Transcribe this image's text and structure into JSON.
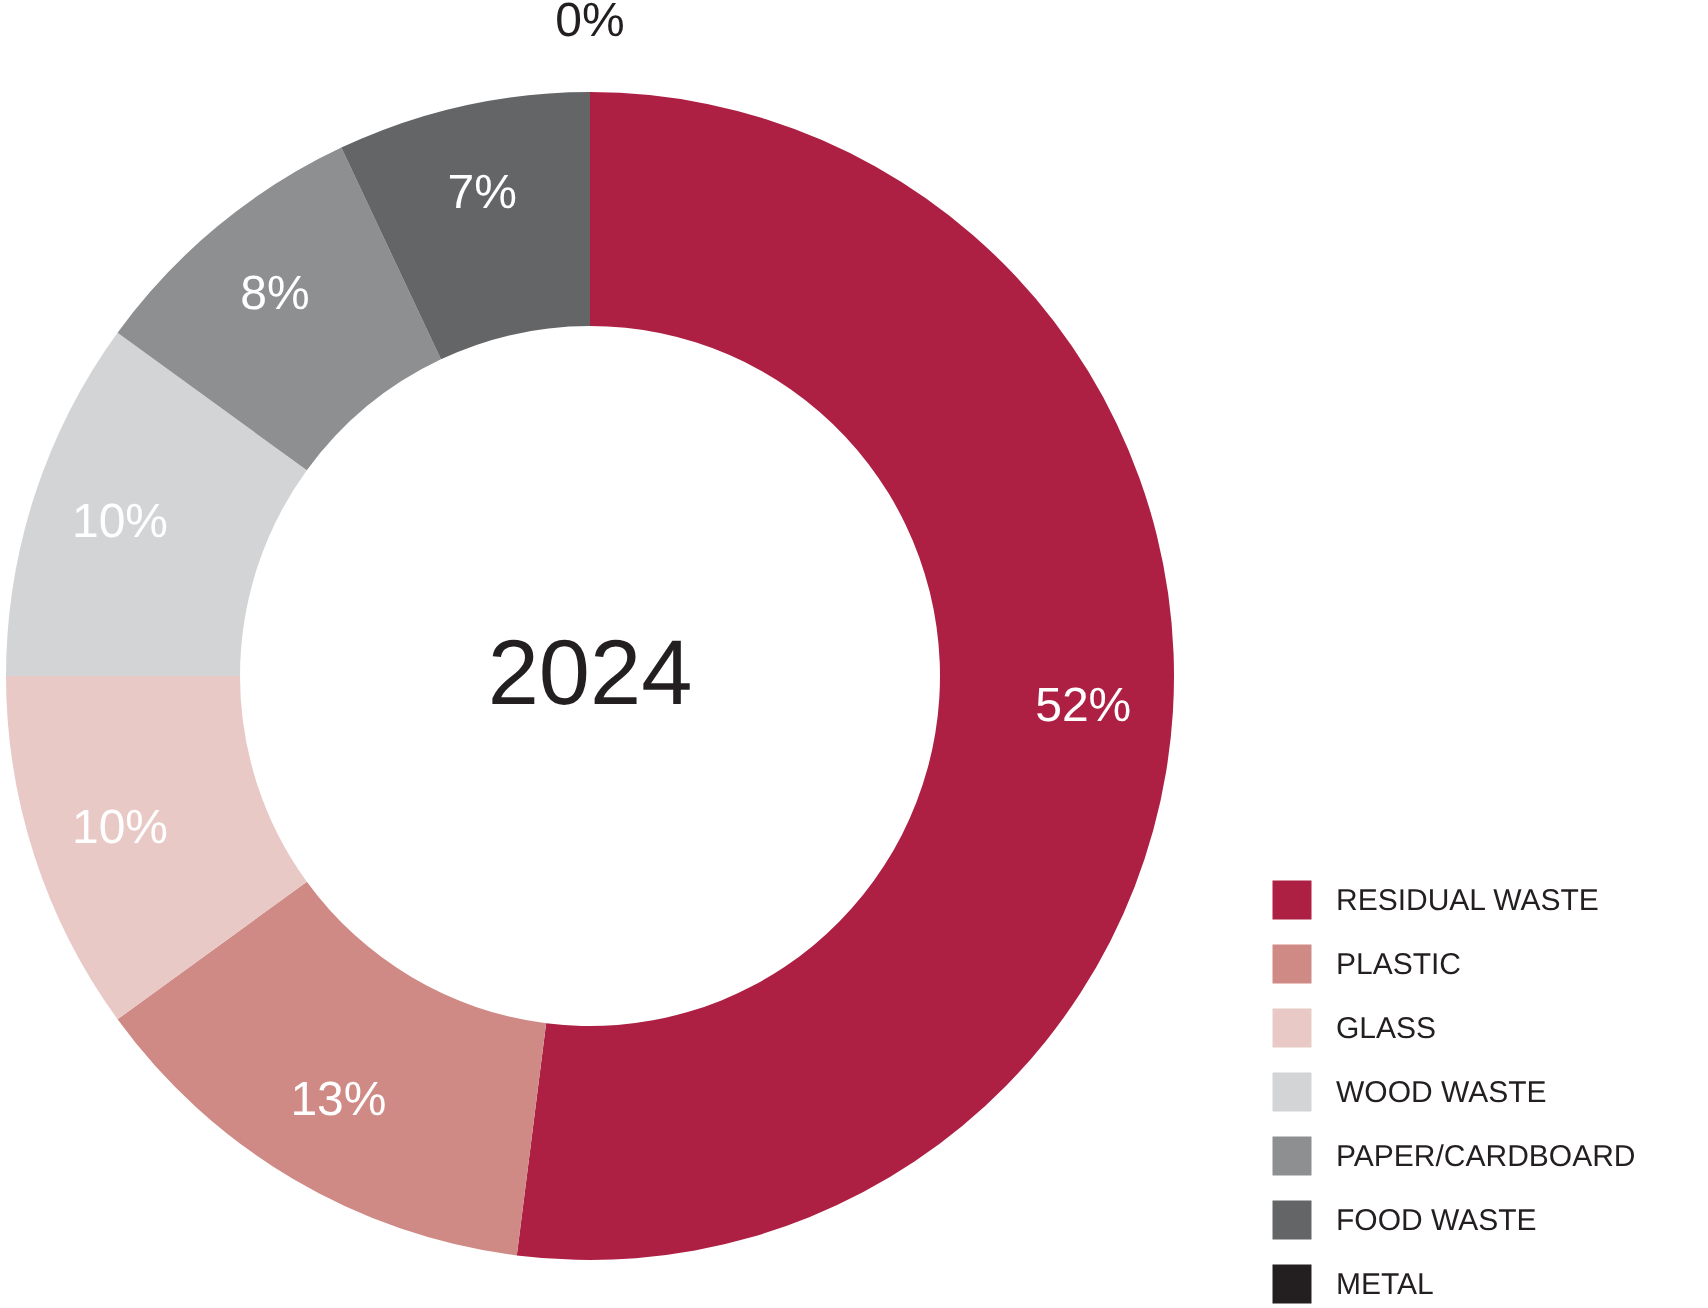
{
  "chart_data": {
    "type": "donut",
    "title": "2024",
    "categories": [
      "RESIDUAL WASTE",
      "PLASTIC",
      "GLASS",
      "WOOD WASTE",
      "PAPER/CARDBOARD",
      "FOOD WASTE",
      "METAL"
    ],
    "values": [
      52,
      13,
      10,
      10,
      8,
      7,
      0
    ],
    "colors": [
      "#ae1f44",
      "#cf8a85",
      "#e8c9c6",
      "#d3d4d6",
      "#8e8f91",
      "#646567",
      "#231f20"
    ],
    "value_labels": [
      "52%",
      "13%",
      "10%",
      "10%",
      "8%",
      "7%",
      "0%"
    ],
    "legend": "bottom right"
  }
}
